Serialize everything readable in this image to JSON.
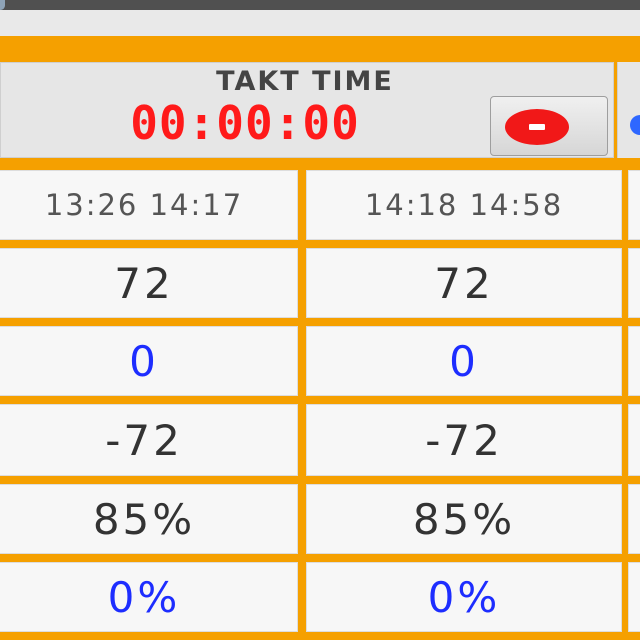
{
  "header": {
    "takt_label": "TAKT TIME",
    "takt_value": "00:00:00",
    "stop_icon": "stop-icon",
    "edge_icon": "blue-circle-icon"
  },
  "colors": {
    "accent": "#f5a000",
    "takt_value": "#ff1a1a",
    "blue_values": "#1d2dff"
  },
  "table": {
    "columns": [
      {
        "time_range": "13:26 14:17",
        "row1": "72",
        "row2": "0",
        "row3": "-72",
        "row4": "85%",
        "row5": "0%"
      },
      {
        "time_range": "14:18 14:58",
        "row1": "72",
        "row2": "0",
        "row3": "-72",
        "row4": "85%",
        "row5": "0%"
      }
    ]
  }
}
